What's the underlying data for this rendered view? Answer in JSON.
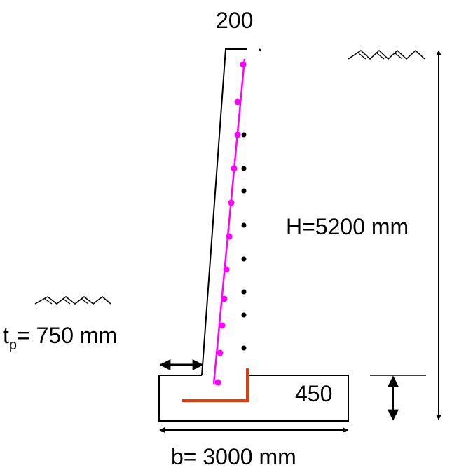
{
  "labels": {
    "top_width": "200",
    "height": "H=5200 mm",
    "toe_prefix": "t",
    "toe_sub": "p",
    "toe_value": "= 750 mm",
    "base_thickness": "450",
    "base_width": "b= 3000  mm"
  },
  "colors": {
    "outline": "#000000",
    "stem_bar": "#ff00ff",
    "base_bar": "#ff3300",
    "dots_front": "#ff00ff",
    "dots_back": "#000000"
  }
}
